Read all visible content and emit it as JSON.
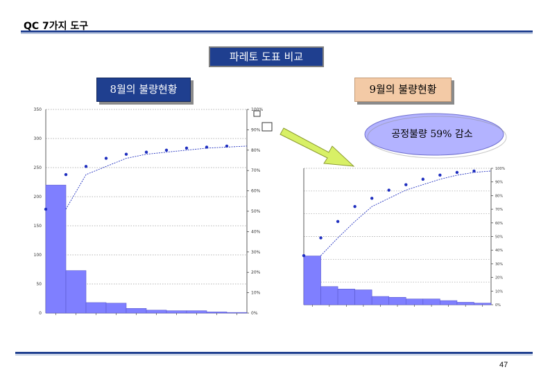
{
  "header": {
    "title": "QC 7가지 도구"
  },
  "comparison_title": "파레토 도표 비교",
  "labels": {
    "august": "8월의 불량현황",
    "september": "9월의 불량현황"
  },
  "callout": {
    "text": "공정불량 59% 감소"
  },
  "page_number": "47",
  "colors": {
    "bar": "#7f7fff",
    "line": "#1f2fbf",
    "title_box": "#1f3f8f",
    "september_box": "#f3caa6",
    "callout": "#b3b3ff",
    "arrow": "#d8f066"
  },
  "chart_data": [
    {
      "type": "bar",
      "left_axis_ticks": [
        "0",
        "50",
        "100",
        "150",
        "200",
        "250",
        "300",
        "350"
      ],
      "right_axis_ticks": [
        "0%",
        "10%",
        "20%",
        "30%",
        "40%",
        "50%",
        "60%",
        "70%",
        "80%",
        "90%",
        "100%"
      ],
      "categories": [
        "",
        "",
        "",
        "",
        "",
        "",
        "",
        "",
        "",
        ""
      ],
      "values": [
        220,
        73,
        18,
        17,
        8,
        5,
        4,
        4,
        2,
        1
      ],
      "cumulative_percent": [
        51,
        68,
        72,
        76,
        78,
        79,
        80,
        81,
        81.5,
        82
      ],
      "ylim": [
        0,
        350
      ],
      "y2lim": [
        0,
        100
      ],
      "grid": true
    },
    {
      "type": "bar",
      "left_axis_ticks": [
        "",
        "",
        "",
        "",
        "",
        "",
        ""
      ],
      "right_axis_ticks": [
        "0%",
        "10%",
        "20%",
        "30%",
        "40%",
        "50%",
        "60%",
        "70%",
        "80%",
        "90%",
        "100%"
      ],
      "categories": [
        "",
        "",
        "",
        "",
        "",
        "",
        "",
        "",
        "",
        "",
        ""
      ],
      "values": [
        59,
        22,
        19,
        18,
        10,
        9,
        7,
        7,
        5,
        3,
        2
      ],
      "cumulative_percent": [
        36,
        49,
        61,
        72,
        78,
        84,
        88,
        92,
        95,
        97,
        98
      ],
      "ylim": [
        0,
        165
      ],
      "y2lim": [
        0,
        100
      ],
      "grid": true
    }
  ]
}
